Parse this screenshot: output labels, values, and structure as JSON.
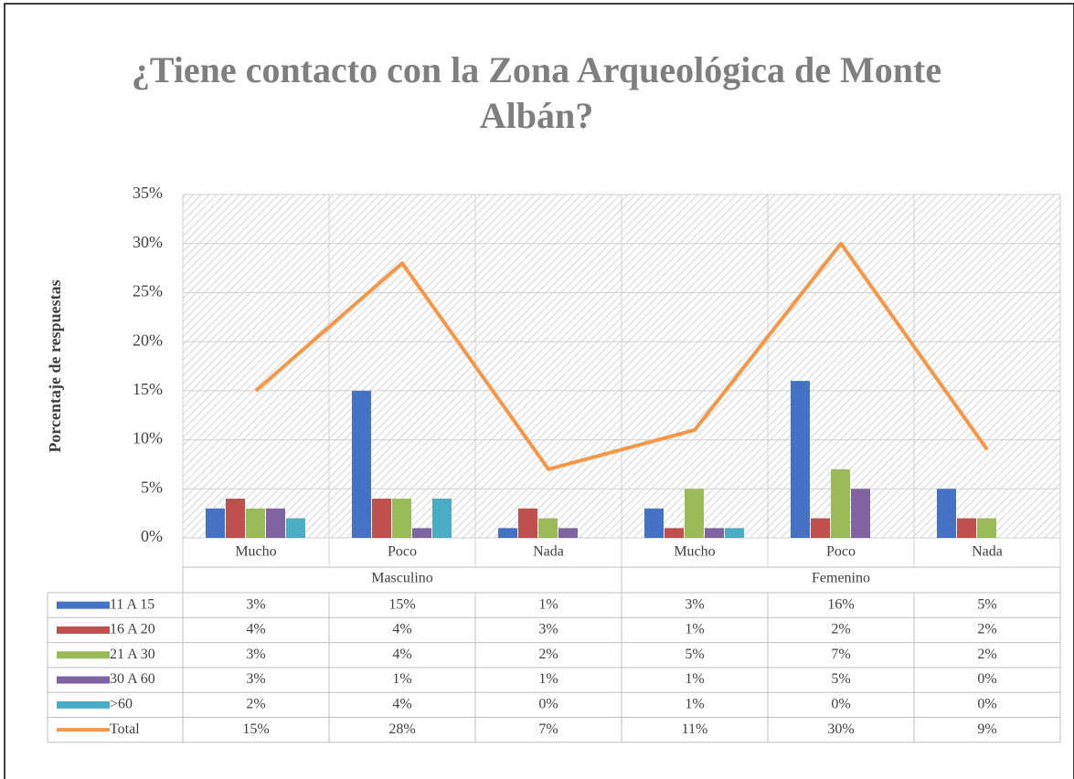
{
  "chart_data": {
    "type": "bar",
    "title": "¿Tiene contacto con la Zona Arqueológica de Monte Albán?",
    "y_label": "Porcentaje de respuestas",
    "categories": [
      "Mucho",
      "Poco",
      "Nada",
      "Mucho",
      "Poco",
      "Nada"
    ],
    "groups": [
      "Masculino",
      "Femenino"
    ],
    "ylim": [
      0,
      35
    ],
    "yticks": [
      {
        "value": 0,
        "label": "0%"
      },
      {
        "value": 5,
        "label": "5%"
      },
      {
        "value": 10,
        "label": "10%"
      },
      {
        "value": 15,
        "label": "15%"
      },
      {
        "value": 20,
        "label": "20%"
      },
      {
        "value": 25,
        "label": "25%"
      },
      {
        "value": 30,
        "label": "30%"
      },
      {
        "value": 35,
        "label": "35%"
      }
    ],
    "grid": true,
    "series": [
      {
        "name": "11 A 15",
        "type": "bar",
        "color": "#4472c4",
        "values": [
          3,
          15,
          1,
          3,
          16,
          5
        ],
        "value_labels": [
          "3%",
          "15%",
          "1%",
          "3%",
          "16%",
          "5%"
        ]
      },
      {
        "name": "16 A 20",
        "type": "bar",
        "color": "#c0504d",
        "values": [
          4,
          4,
          3,
          1,
          2,
          2
        ],
        "value_labels": [
          "4%",
          "4%",
          "3%",
          "1%",
          "2%",
          "2%"
        ]
      },
      {
        "name": "21 A 30",
        "type": "bar",
        "color": "#9bbb59",
        "values": [
          3,
          4,
          2,
          5,
          7,
          2
        ],
        "value_labels": [
          "3%",
          "4%",
          "2%",
          "5%",
          "7%",
          "2%"
        ]
      },
      {
        "name": "30 A 60",
        "type": "bar",
        "color": "#8064a2",
        "values": [
          3,
          1,
          1,
          1,
          5,
          0
        ],
        "value_labels": [
          "3%",
          "1%",
          "1%",
          "1%",
          "5%",
          "0%"
        ]
      },
      {
        "name": ">60",
        "type": "bar",
        "color": "#4bacc6",
        "values": [
          2,
          4,
          0,
          1,
          0,
          0
        ],
        "value_labels": [
          "2%",
          "4%",
          "0%",
          "1%",
          "0%",
          "0%"
        ]
      },
      {
        "name": "Total",
        "type": "line",
        "color": "#f79646",
        "values": [
          15,
          28,
          7,
          11,
          30,
          9
        ],
        "value_labels": [
          "15%",
          "28%",
          "7%",
          "11%",
          "30%",
          "9%"
        ]
      }
    ]
  }
}
